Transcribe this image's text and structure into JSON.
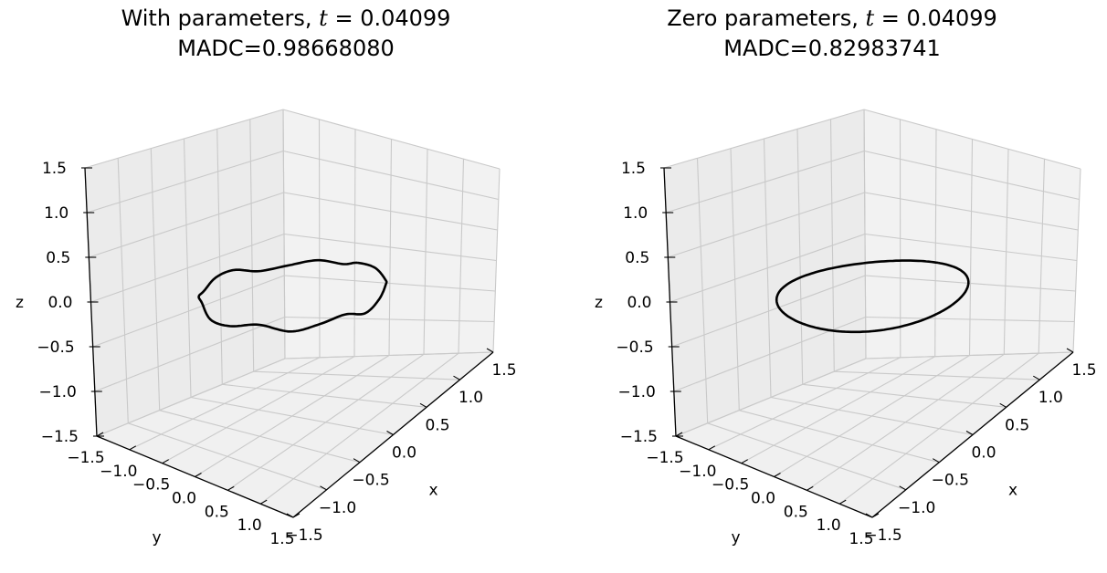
{
  "chart_data": [
    {
      "type": "line",
      "projection": "3d",
      "title": {
        "prefix": "With parameters, ",
        "var": "t",
        "equals": " = ",
        "value": "0.04099",
        "line2": "MADC=0.98668080"
      },
      "xlabel": "x",
      "ylabel": "y",
      "zlabel": "z",
      "xlim": [
        -1.5,
        1.5
      ],
      "ylim": [
        -1.5,
        1.5
      ],
      "zlim": [
        -1.5,
        1.5
      ],
      "x_ticks": [
        "−1.5",
        "−1.0",
        "−0.5",
        "0.0",
        "0.5",
        "1.0",
        "1.5"
      ],
      "y_ticks": [
        "−1.5",
        "−1.0",
        "−0.5",
        "0.0",
        "0.5",
        "1.0",
        "1.5"
      ],
      "z_ticks": [
        "−1.5",
        "−1.0",
        "−0.5",
        "0.0",
        "0.5",
        "1.0",
        "1.5"
      ],
      "grid": true,
      "line_color": "#000000",
      "curve": {
        "description": "closed perturbed loop near z=0",
        "x": [
          1.0,
          0.92,
          0.78,
          0.55,
          0.3,
          0.05,
          -0.2,
          -0.45,
          -0.68,
          -0.88,
          -1.0,
          -0.95,
          -0.8,
          -0.6,
          -0.35,
          -0.1,
          0.15,
          0.4,
          0.62,
          0.82,
          0.95,
          1.0
        ],
        "y": [
          0.0,
          0.32,
          0.6,
          0.82,
          0.96,
          1.0,
          0.95,
          0.82,
          0.62,
          0.35,
          0.05,
          -0.28,
          -0.55,
          -0.78,
          -0.94,
          -1.0,
          -0.97,
          -0.85,
          -0.65,
          -0.4,
          -0.15,
          0.0
        ],
        "z": [
          0.0,
          0.02,
          -0.03,
          0.05,
          0.0,
          -0.05,
          0.04,
          0.0,
          -0.04,
          0.05,
          0.0,
          -0.03,
          0.05,
          0.0,
          -0.05,
          0.02,
          0.04,
          -0.03,
          0.0,
          0.04,
          -0.02,
          0.0
        ]
      }
    },
    {
      "type": "line",
      "projection": "3d",
      "title": {
        "prefix": "Zero parameters, ",
        "var": "t",
        "equals": " = ",
        "value": "0.04099",
        "line2": "MADC=0.82983741"
      },
      "xlabel": "x",
      "ylabel": "y",
      "zlabel": "z",
      "xlim": [
        -1.5,
        1.5
      ],
      "ylim": [
        -1.5,
        1.5
      ],
      "zlim": [
        -1.5,
        1.5
      ],
      "x_ticks": [
        "−1.5",
        "−1.0",
        "−0.5",
        "0.0",
        "0.5",
        "1.0",
        "1.5"
      ],
      "y_ticks": [
        "−1.5",
        "−1.0",
        "−0.5",
        "0.0",
        "0.5",
        "1.0",
        "1.5"
      ],
      "z_ticks": [
        "−1.5",
        "−1.0",
        "−0.5",
        "0.0",
        "0.5",
        "1.0",
        "1.5"
      ],
      "grid": true,
      "line_color": "#000000",
      "curve": {
        "description": "unit circle in the z=0 plane",
        "radius": 1.0,
        "z": 0.0
      }
    }
  ]
}
